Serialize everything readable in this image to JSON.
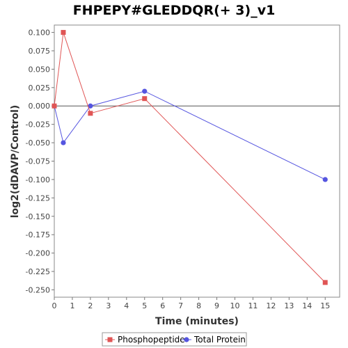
{
  "chart_data": {
    "type": "line",
    "title": "FHPEPY#GLEDDQR(+ 3)_v1",
    "xlabel": "Time (minutes)",
    "ylabel": "log2(dDAVP/Control)",
    "xlim": [
      0,
      15.8
    ],
    "ylim": [
      -0.26,
      0.11
    ],
    "xticks": [
      0,
      1,
      2,
      3,
      4,
      5,
      6,
      7,
      8,
      9,
      10,
      11,
      12,
      13,
      14,
      15
    ],
    "yticks": [
      "0.100",
      "0.075",
      "0.050",
      "0.025",
      "0.000",
      "-0.025",
      "-0.050",
      "-0.075",
      "-0.100",
      "-0.125",
      "-0.150",
      "-0.175",
      "-0.200",
      "-0.225",
      "-0.250"
    ],
    "grid": false,
    "zero_line": true,
    "legend_position": "bottom",
    "series": [
      {
        "name": "Phosphopeptide",
        "color": "#e05555",
        "marker": "square",
        "x": [
          0,
          0.5,
          2,
          5,
          15
        ],
        "y": [
          0.0,
          0.1,
          -0.01,
          0.01,
          -0.24
        ]
      },
      {
        "name": "Total Protein",
        "color": "#5555e0",
        "marker": "circle",
        "x": [
          0,
          0.5,
          2,
          5,
          15
        ],
        "y": [
          0.0,
          -0.05,
          0.0,
          0.02,
          -0.1
        ]
      }
    ]
  }
}
